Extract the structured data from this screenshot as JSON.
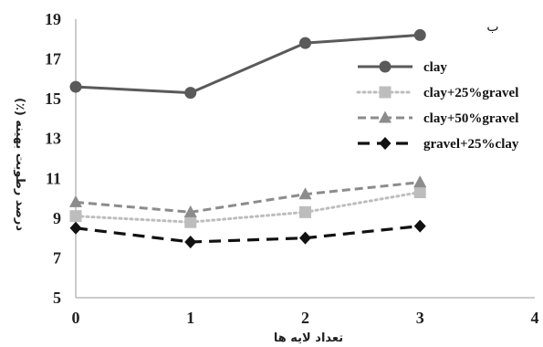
{
  "chart_data": {
    "type": "line",
    "panel_label": "ب",
    "xlabel": "تعداد لایه ها",
    "ylabel": "درصد رطوبت بهینه (٪)",
    "xlim": [
      0,
      4
    ],
    "ylim": [
      5,
      19
    ],
    "xticks": [
      "0",
      "1",
      "2",
      "3",
      "4"
    ],
    "yticks": [
      "5",
      "7",
      "9",
      "11",
      "13",
      "15",
      "17",
      "19"
    ],
    "grid": false,
    "legend_position": "right",
    "x": [
      0,
      1,
      2,
      3
    ],
    "series": [
      {
        "name": "clay",
        "values": [
          15.6,
          15.3,
          17.8,
          18.2
        ],
        "color": "#5a5a5a",
        "marker": "circle",
        "dash": "solid"
      },
      {
        "name": "clay+25%gravel",
        "values": [
          9.1,
          8.8,
          9.3,
          10.3
        ],
        "color": "#bdbdbd",
        "marker": "square",
        "dash": "dotted"
      },
      {
        "name": "clay+50%gravel",
        "values": [
          9.8,
          9.3,
          10.2,
          10.8
        ],
        "color": "#8c8c8c",
        "marker": "triangle",
        "dash": "dashed"
      },
      {
        "name": "gravel+25%clay",
        "values": [
          8.5,
          7.8,
          8.0,
          8.6
        ],
        "color": "#111111",
        "marker": "diamond",
        "dash": "longdash"
      }
    ]
  }
}
